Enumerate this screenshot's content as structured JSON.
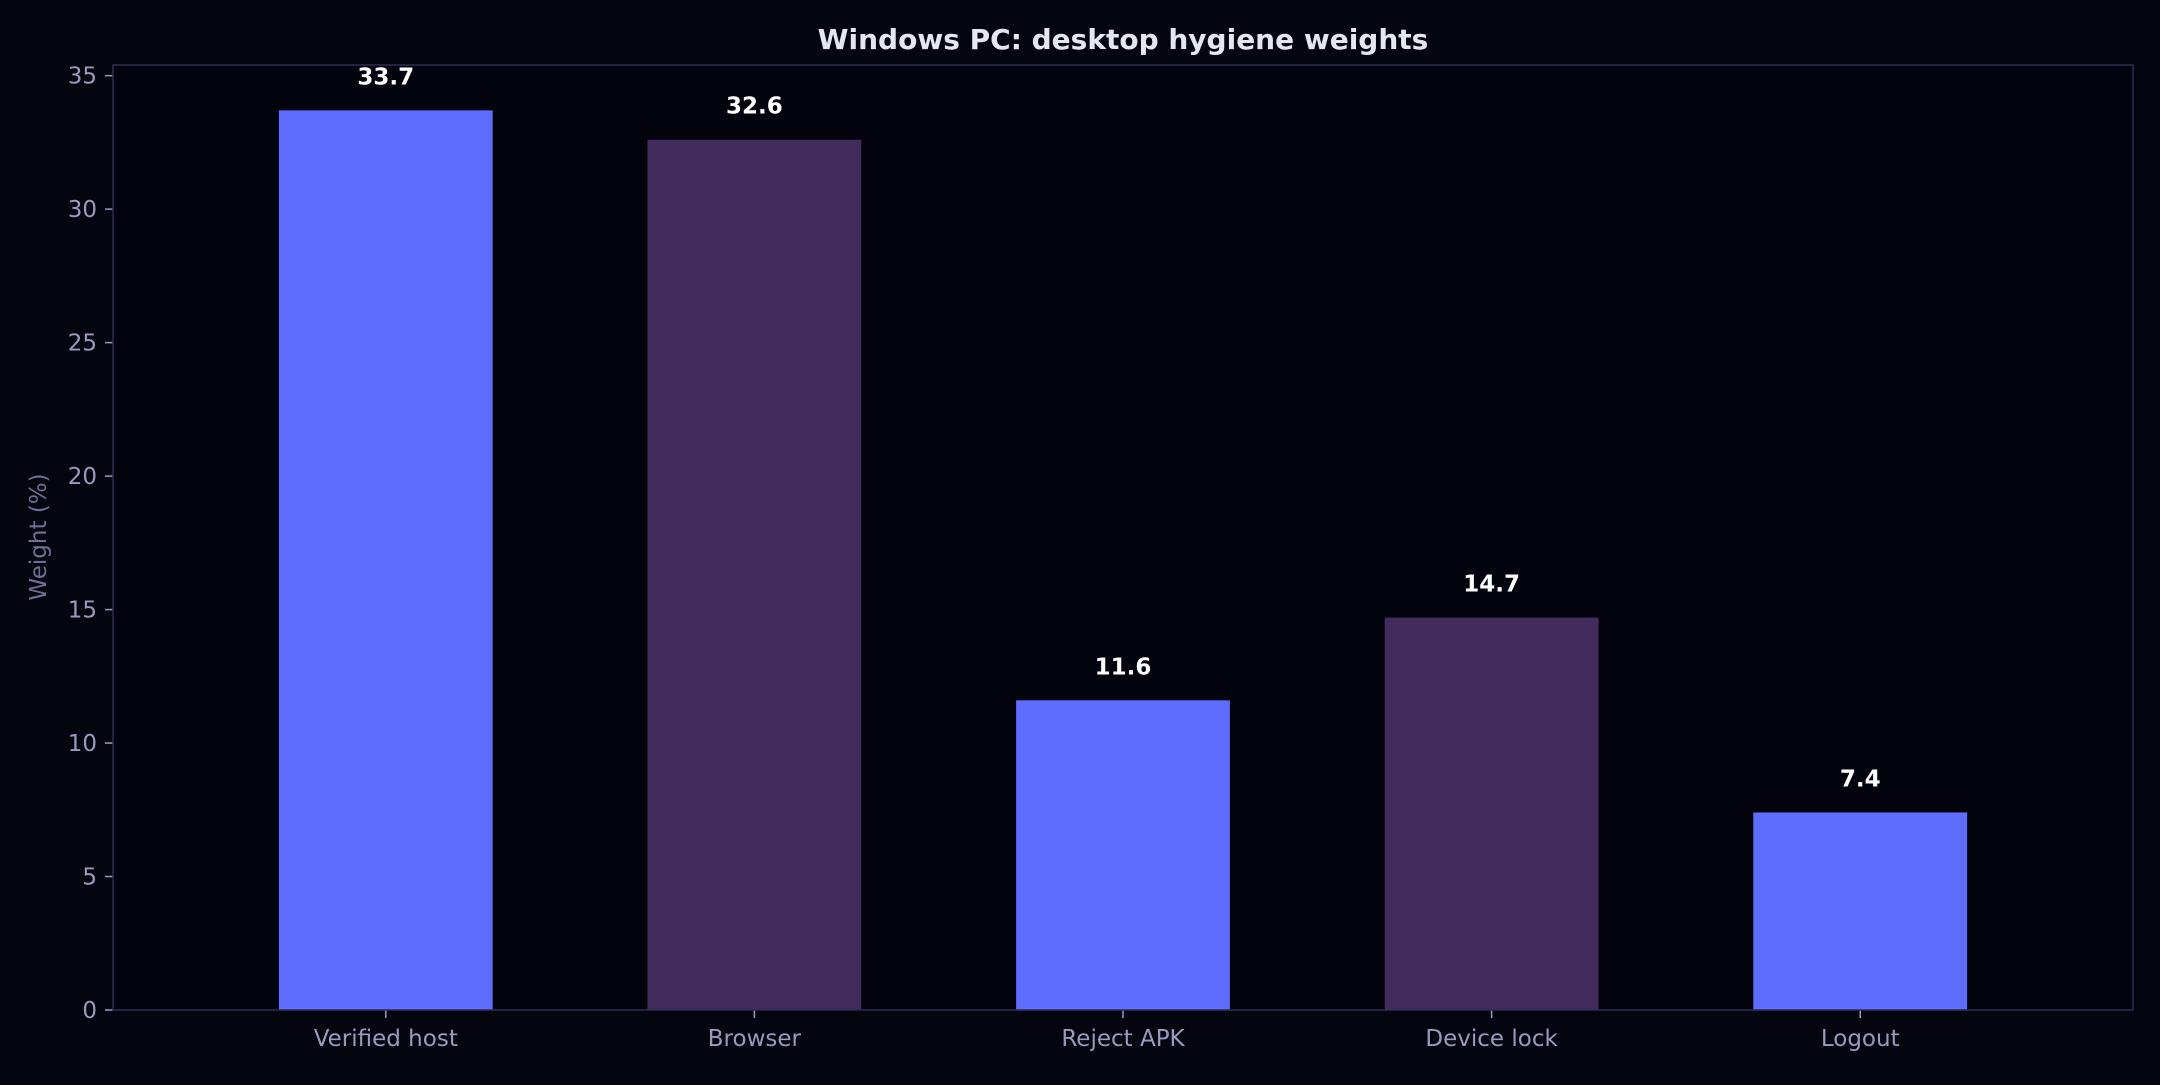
{
  "chart_data": {
    "type": "bar",
    "title": "Windows PC: desktop hygiene weights",
    "xlabel": "",
    "ylabel": "Weight (%)",
    "categories": [
      "Verified host",
      "Browser",
      "Reject APK",
      "Device lock",
      "Logout"
    ],
    "values": [
      33.7,
      32.6,
      11.6,
      14.7,
      7.4
    ],
    "value_labels": [
      "33.7",
      "32.6",
      "11.6",
      "14.7",
      "7.4"
    ],
    "bar_colors": [
      "#5f6dff",
      "#422c5e",
      "#5f6dff",
      "#422c5e",
      "#5f6dff"
    ],
    "ylim": [
      0,
      35.4
    ],
    "yticks": [
      0,
      5,
      10,
      15,
      20,
      25,
      30,
      35
    ],
    "grid": false,
    "legend": "none",
    "colors": {
      "background": "#05050f",
      "plot_background": "#03030e",
      "axes_frame": "#2c2c52",
      "tick_label": "#9a9ac0",
      "axis_label": "#6e6e96",
      "title": "#e6e6f2",
      "value_label": "#ffffff"
    }
  }
}
